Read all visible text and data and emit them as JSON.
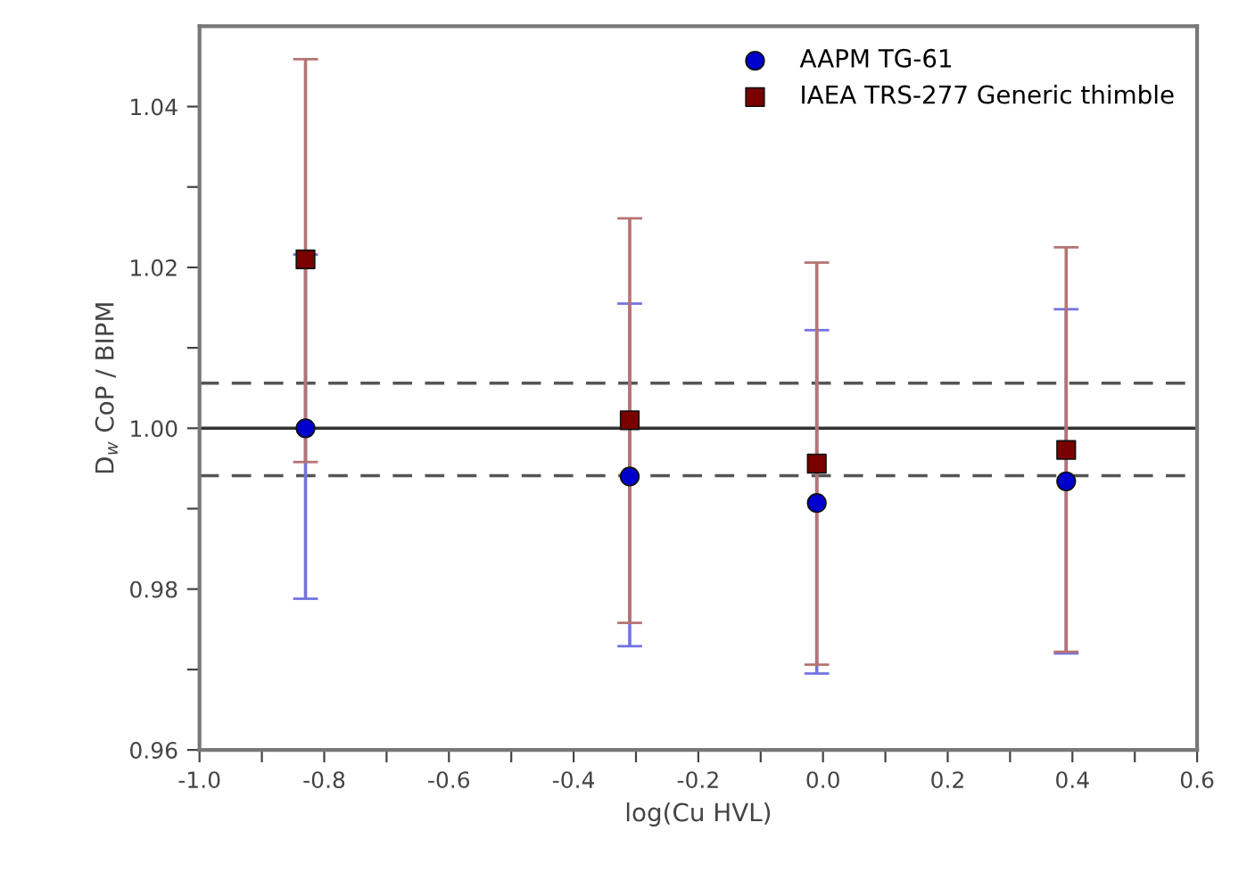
{
  "chart_data": {
    "type": "scatter",
    "xlabel": "log(Cu HVL)",
    "ylabel": "D$_{w}$ CoP / BIPM",
    "x": [
      -0.83,
      -0.31,
      -0.01,
      0.39
    ],
    "series": [
      {
        "name": "AAPM TG-61",
        "color": "#0000cc",
        "marker": "circle",
        "values": [
          1.0,
          0.994,
          0.9907,
          0.9934
        ],
        "errors": [
          [
            0.9788,
            1.0216
          ],
          [
            0.9729,
            1.0155
          ],
          [
            0.9695,
            1.0122
          ],
          [
            0.972,
            1.0148
          ]
        ]
      },
      {
        "name": "IAEA TRS-277 Generic thimble",
        "color": "#7a0000",
        "marker": "square",
        "values": [
          1.021,
          1.001,
          0.9956,
          0.9973
        ],
        "errors": [
          [
            0.9958,
            1.0459
          ],
          [
            0.9758,
            1.0261
          ],
          [
            0.9706,
            1.0206
          ],
          [
            0.9722,
            1.0225
          ]
        ]
      }
    ],
    "xlim": [
      -1.0,
      0.6
    ],
    "ylim": [
      0.96,
      1.05
    ],
    "xticks": [
      {
        "value": -1.0,
        "label": "-1.0"
      },
      {
        "value": -0.9,
        "label": null
      },
      {
        "value": -0.8,
        "label": "-0.8"
      },
      {
        "value": -0.7,
        "label": null
      },
      {
        "value": -0.6,
        "label": "-0.6"
      },
      {
        "value": -0.5,
        "label": null
      },
      {
        "value": -0.4,
        "label": "-0.4"
      },
      {
        "value": -0.3,
        "label": null
      },
      {
        "value": -0.2,
        "label": "-0.2"
      },
      {
        "value": -0.1,
        "label": null
      },
      {
        "value": 0.0,
        "label": "0.0"
      },
      {
        "value": 0.1,
        "label": null
      },
      {
        "value": 0.2,
        "label": "0.2"
      },
      {
        "value": 0.3,
        "label": null
      },
      {
        "value": 0.4,
        "label": "0.4"
      },
      {
        "value": 0.5,
        "label": null
      },
      {
        "value": 0.6,
        "label": "0.6"
      }
    ],
    "yticks": [
      {
        "value": 0.96,
        "label": "0.96"
      },
      {
        "value": 0.97,
        "label": null
      },
      {
        "value": 0.98,
        "label": "0.98"
      },
      {
        "value": 0.99,
        "label": null
      },
      {
        "value": 1.0,
        "label": "1.00"
      },
      {
        "value": 1.01,
        "label": null
      },
      {
        "value": 1.02,
        "label": "1.02"
      },
      {
        "value": 1.03,
        "label": null
      },
      {
        "value": 1.04,
        "label": "1.04"
      }
    ],
    "ref_lines": [
      {
        "axis": "y",
        "value": 1.0,
        "color": "#333333",
        "line_style": "solid"
      },
      {
        "axis": "y",
        "value": 1.0056,
        "color": "#555555",
        "line_style": "dashed"
      },
      {
        "axis": "y",
        "value": 0.9941,
        "color": "#555555",
        "line_style": "dashed"
      }
    ],
    "grid": false,
    "legend": "top right"
  }
}
